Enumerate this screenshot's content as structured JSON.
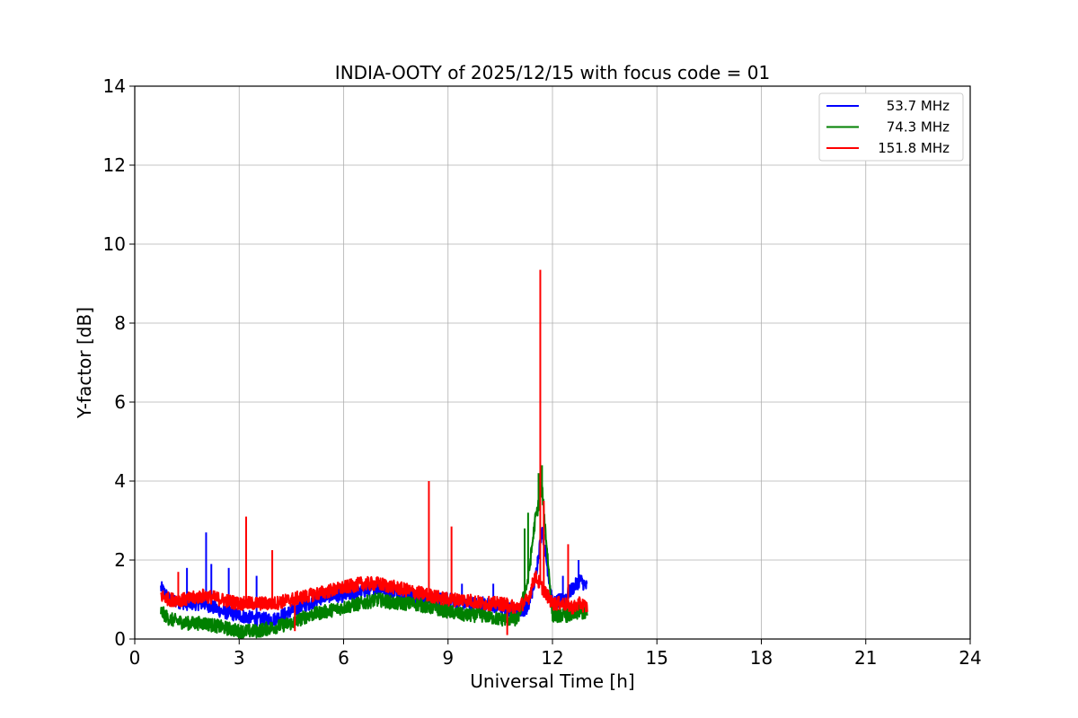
{
  "chart_data": {
    "type": "line",
    "title": "INDIA-OOTY of 2025/12/15 with focus code = 01",
    "xlabel": "Universal Time [h]",
    "ylabel": "Y-factor [dB]",
    "xlim": [
      0,
      24
    ],
    "ylim": [
      0,
      14
    ],
    "xticks": [
      0,
      3,
      6,
      9,
      12,
      15,
      18,
      21,
      24
    ],
    "yticks": [
      0,
      2,
      4,
      6,
      8,
      10,
      12,
      14
    ],
    "grid": true,
    "legend_position": "top-right",
    "series": [
      {
        "name": "53.7 MHz",
        "color": "#0000ff",
        "x": [
          0.75,
          1.0,
          1.5,
          2.0,
          2.5,
          3.0,
          3.5,
          4.0,
          4.5,
          5.0,
          5.5,
          6.0,
          6.5,
          7.0,
          7.5,
          8.0,
          8.5,
          9.0,
          9.5,
          10.0,
          10.5,
          11.0,
          11.3,
          11.5,
          11.7,
          12.0,
          12.3,
          12.6,
          12.8,
          13.0
        ],
        "values": [
          1.3,
          1.0,
          0.9,
          0.9,
          0.7,
          0.6,
          0.5,
          0.5,
          0.7,
          0.9,
          1.1,
          1.1,
          1.2,
          1.3,
          1.2,
          1.1,
          1.0,
          1.0,
          0.9,
          0.9,
          0.8,
          0.7,
          0.8,
          1.5,
          2.8,
          0.9,
          1.0,
          1.3,
          1.5,
          1.3
        ],
        "spikes": [
          {
            "x": 2.05,
            "y": 2.7
          },
          {
            "x": 2.2,
            "y": 1.9
          },
          {
            "x": 1.5,
            "y": 1.8
          },
          {
            "x": 2.7,
            "y": 1.8
          },
          {
            "x": 3.5,
            "y": 1.6
          },
          {
            "x": 9.4,
            "y": 1.4
          },
          {
            "x": 10.3,
            "y": 1.4
          },
          {
            "x": 12.3,
            "y": 1.6
          },
          {
            "x": 12.75,
            "y": 2.0
          }
        ]
      },
      {
        "name": "74.3 MHz",
        "color": "#008000",
        "x": [
          0.75,
          1.0,
          1.5,
          2.0,
          2.5,
          3.0,
          3.5,
          4.0,
          4.5,
          5.0,
          5.5,
          6.0,
          6.5,
          7.0,
          7.5,
          8.0,
          8.5,
          9.0,
          9.5,
          10.0,
          10.5,
          11.0,
          11.3,
          11.5,
          11.7,
          12.0,
          12.3,
          12.6,
          12.8,
          13.0
        ],
        "values": [
          0.7,
          0.5,
          0.4,
          0.4,
          0.3,
          0.2,
          0.2,
          0.3,
          0.4,
          0.6,
          0.7,
          0.8,
          0.9,
          1.0,
          0.9,
          0.9,
          0.8,
          0.7,
          0.6,
          0.6,
          0.5,
          0.5,
          1.5,
          3.0,
          3.8,
          0.6,
          0.6,
          0.6,
          0.7,
          0.6
        ],
        "spikes": [
          {
            "x": 11.3,
            "y": 3.2
          },
          {
            "x": 11.6,
            "y": 4.2
          },
          {
            "x": 11.7,
            "y": 4.4
          },
          {
            "x": 11.2,
            "y": 2.8
          }
        ]
      },
      {
        "name": "151.8 MHz",
        "color": "#ff0000",
        "x": [
          0.75,
          1.0,
          1.5,
          2.0,
          2.5,
          3.0,
          3.5,
          4.0,
          4.5,
          5.0,
          5.5,
          6.0,
          6.5,
          7.0,
          7.5,
          8.0,
          8.5,
          9.0,
          9.5,
          10.0,
          10.5,
          11.0,
          11.3,
          11.5,
          11.7,
          12.0,
          12.3,
          12.6,
          12.8,
          13.0
        ],
        "values": [
          1.1,
          1.0,
          1.0,
          1.1,
          1.0,
          0.9,
          0.9,
          0.9,
          1.0,
          1.1,
          1.2,
          1.3,
          1.4,
          1.4,
          1.3,
          1.2,
          1.1,
          1.0,
          1.0,
          0.9,
          0.9,
          0.8,
          1.0,
          1.6,
          1.3,
          0.9,
          0.9,
          0.8,
          0.9,
          0.8
        ],
        "spikes": [
          {
            "x": 1.25,
            "y": 1.7
          },
          {
            "x": 3.2,
            "y": 3.1
          },
          {
            "x": 3.95,
            "y": 2.25
          },
          {
            "x": 4.6,
            "y": 0.2
          },
          {
            "x": 8.45,
            "y": 4.0
          },
          {
            "x": 9.1,
            "y": 2.85
          },
          {
            "x": 10.7,
            "y": 0.1
          },
          {
            "x": 11.65,
            "y": 9.35
          },
          {
            "x": 11.75,
            "y": 3.5
          },
          {
            "x": 12.45,
            "y": 2.4
          }
        ]
      }
    ]
  }
}
